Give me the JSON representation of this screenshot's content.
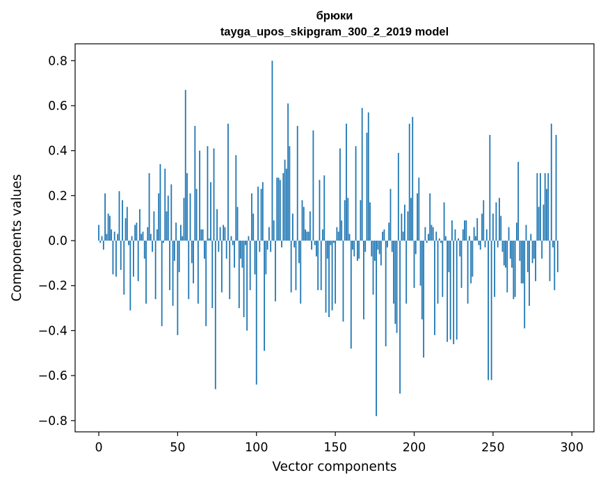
{
  "chart_data": {
    "type": "bar",
    "title": "брюки",
    "subtitle": "tayga_upos_skipgram_300_2_2019 model",
    "xlabel": "Vector components",
    "ylabel": "Components values",
    "xlim": [
      -15,
      314
    ],
    "ylim": [
      -0.85,
      0.875
    ],
    "xticks": [
      0,
      50,
      100,
      150,
      200,
      250,
      300
    ],
    "yticks": [
      -0.8,
      -0.6,
      -0.4,
      -0.2,
      0.0,
      0.2,
      0.4,
      0.6,
      0.8
    ],
    "ytick_labels": [
      "−0.8",
      "−0.6",
      "−0.4",
      "−0.2",
      "0.0",
      "0.2",
      "0.4",
      "0.6",
      "0.8"
    ],
    "bar_color": "#1f77b4",
    "values": [
      0.07,
      -0.01,
      0.02,
      -0.04,
      0.21,
      0.03,
      0.12,
      0.11,
      0.05,
      -0.15,
      0.04,
      -0.16,
      0.03,
      0.22,
      -0.13,
      0.18,
      -0.24,
      0.1,
      0.15,
      -0.02,
      -0.31,
      0.02,
      -0.16,
      0.07,
      0.08,
      -0.18,
      0.14,
      0.03,
      0.04,
      -0.08,
      -0.28,
      0.06,
      0.3,
      0.03,
      -0.05,
      0.13,
      -0.26,
      0.05,
      0.21,
      0.34,
      -0.38,
      -0.01,
      0.32,
      0.13,
      0.2,
      -0.22,
      0.25,
      -0.29,
      -0.09,
      0.08,
      -0.42,
      -0.14,
      0.07,
      0.02,
      0.19,
      0.67,
      0.3,
      -0.26,
      0.21,
      -0.1,
      -0.19,
      0.51,
      0.23,
      -0.28,
      0.4,
      0.05,
      0.05,
      -0.08,
      -0.38,
      0.42,
      0.01,
      0.26,
      -0.3,
      0.41,
      -0.66,
      0.14,
      -0.05,
      0.06,
      -0.23,
      0.07,
      0.06,
      -0.08,
      0.52,
      -0.26,
      0.02,
      -0.02,
      -0.12,
      0.38,
      0.15,
      -0.3,
      -0.08,
      -0.12,
      -0.34,
      -0.02,
      -0.4,
      0.02,
      -0.22,
      0.21,
      0.12,
      -0.15,
      -0.64,
      0.24,
      -0.05,
      0.23,
      0.26,
      -0.49,
      -0.15,
      -0.04,
      0.06,
      -0.05,
      0.8,
      0.09,
      -0.27,
      0.28,
      0.28,
      0.27,
      -0.03,
      0.3,
      0.36,
      0.32,
      0.61,
      0.42,
      -0.23,
      0.12,
      -0.03,
      -0.22,
      0.51,
      -0.1,
      -0.28,
      0.18,
      0.15,
      0.05,
      0.04,
      0.04,
      0.13,
      -0.04,
      0.49,
      -0.02,
      -0.07,
      -0.22,
      0.27,
      -0.22,
      0.05,
      0.29,
      -0.32,
      -0.08,
      -0.34,
      -0.02,
      -0.31,
      -0.01,
      -0.28,
      0.06,
      0.04,
      0.41,
      0.09,
      -0.36,
      0.18,
      0.52,
      0.19,
      0.03,
      -0.48,
      -0.04,
      -0.07,
      0.42,
      -0.09,
      -0.08,
      0.18,
      0.59,
      -0.35,
      -0.05,
      0.48,
      0.57,
      0.17,
      -0.07,
      -0.24,
      -0.09,
      -0.78,
      -0.04,
      -0.06,
      -0.11,
      0.04,
      0.05,
      -0.47,
      -0.03,
      0.08,
      0.23,
      -0.05,
      -0.28,
      -0.37,
      -0.41,
      0.39,
      -0.68,
      0.12,
      0.04,
      0.16,
      -0.28,
      0.13,
      0.52,
      0.19,
      0.55,
      -0.21,
      -0.06,
      0.21,
      0.28,
      -0.2,
      -0.35,
      -0.52,
      0.06,
      -0.01,
      0.03,
      0.21,
      0.07,
      0.06,
      -0.42,
      0.04,
      -0.28,
      0.01,
      -0.01,
      -0.25,
      0.17,
      0.02,
      -0.45,
      -0.14,
      -0.44,
      0.09,
      -0.46,
      0.05,
      -0.44,
      0.01,
      -0.07,
      -0.21,
      0.05,
      0.09,
      0.09,
      -0.28,
      0.02,
      -0.19,
      -0.16,
      0.06,
      0.02,
      0.1,
      -0.02,
      -0.04,
      0.12,
      0.18,
      -0.03,
      0.05,
      -0.62,
      0.47,
      -0.62,
      0.12,
      -0.25,
      0.17,
      -0.03,
      0.19,
      0.11,
      -0.05,
      -0.11,
      -0.12,
      -0.23,
      0.06,
      -0.08,
      -0.12,
      -0.26,
      -0.25,
      0.08,
      0.35,
      -0.09,
      -0.19,
      -0.19,
      -0.39,
      0.07,
      -0.14,
      -0.29,
      0.03,
      -0.1,
      -0.08,
      -0.18,
      0.3,
      0.15,
      0.3,
      -0.08,
      0.16,
      0.3,
      0.23,
      0.3,
      -0.18,
      0.52,
      -0.03,
      -0.22,
      0.47,
      -0.14
    ]
  }
}
